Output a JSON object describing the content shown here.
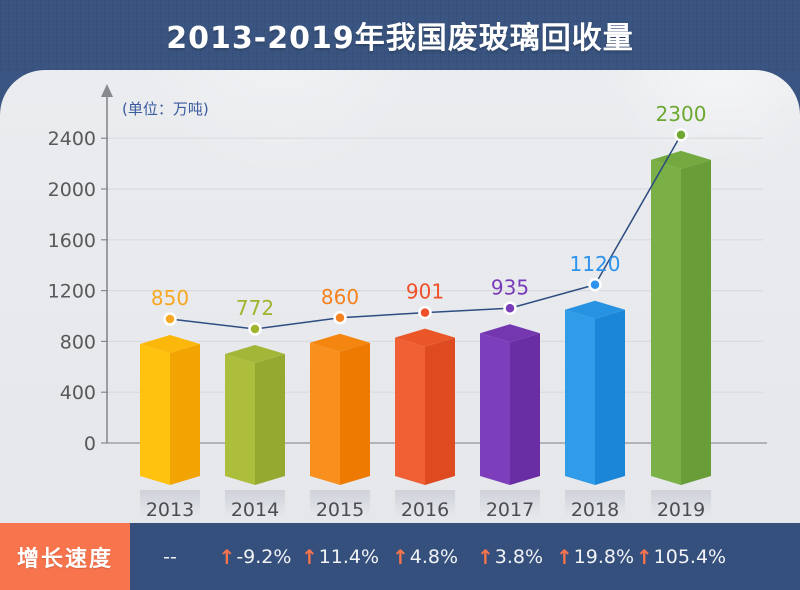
{
  "header": {
    "title": "2013-2019年我国废玻璃回收量"
  },
  "chart_data": {
    "type": "bar",
    "title": "2013-2019年我国废玻璃回收量",
    "unit_label": "(单位：万吨)",
    "categories": [
      "2013",
      "2014",
      "2015",
      "2016",
      "2017",
      "2018",
      "2019"
    ],
    "series": [
      {
        "name": "废玻璃回收量(万吨)",
        "type": "bar-3d",
        "values": [
          850,
          772,
          860,
          901,
          935,
          1120,
          2300
        ]
      },
      {
        "name": "增长速度",
        "type": "line-markers",
        "values": [
          null,
          -9.2,
          11.4,
          4.8,
          3.8,
          19.8,
          105.4
        ],
        "unit": "%"
      }
    ],
    "data_labels": [
      "850",
      "772",
      "860",
      "901",
      "935",
      "1120",
      "2300"
    ],
    "ylim": [
      0,
      2400
    ],
    "y_ticks": [
      0,
      400,
      800,
      1200,
      1600,
      2000,
      2400
    ],
    "grid": true,
    "legend_position": "none",
    "bar_colors": [
      {
        "face": "#FFC20E",
        "side": "#F2A502",
        "top": "#FBB70A",
        "label": "#F7A823"
      },
      {
        "face": "#ADBE3D",
        "side": "#95A930",
        "top": "#A4B637",
        "label": "#A0B42C"
      },
      {
        "face": "#F9901E",
        "side": "#EE7A02",
        "top": "#F4860F",
        "label": "#F5821F"
      },
      {
        "face": "#F15F35",
        "side": "#DE4B20",
        "top": "#EA5628",
        "label": "#F0512B"
      },
      {
        "face": "#7D3EBB",
        "side": "#6A2EA4",
        "top": "#7537B0",
        "label": "#7A3BB8"
      },
      {
        "face": "#2F9BE9",
        "side": "#1B85D8",
        "top": "#2792E2",
        "label": "#2E93EC"
      },
      {
        "face": "#7AB045",
        "side": "#689D37",
        "top": "#73A93E",
        "label": "#6DA832"
      }
    ],
    "line_color": "#2E4D80",
    "axis_color": "#88898C",
    "tick_label_color": "#58595B",
    "x_label_color": "#4D4D4F"
  },
  "growth_row": {
    "label": "增长速度",
    "cells": [
      {
        "text": "--",
        "arrow": false
      },
      {
        "text": "-9.2%",
        "arrow": true
      },
      {
        "text": "11.4%",
        "arrow": true
      },
      {
        "text": "4.8%",
        "arrow": true
      },
      {
        "text": "3.8%",
        "arrow": true
      },
      {
        "text": "19.8%",
        "arrow": true
      },
      {
        "text": "105.4%",
        "arrow": true
      }
    ],
    "arrow_color": "#F8744C",
    "label_bg": "#F8744C",
    "strip_bg": "#35507D"
  },
  "colors": {
    "header_bg": "#3A5581",
    "panel_bg": "#E9EBEE"
  }
}
